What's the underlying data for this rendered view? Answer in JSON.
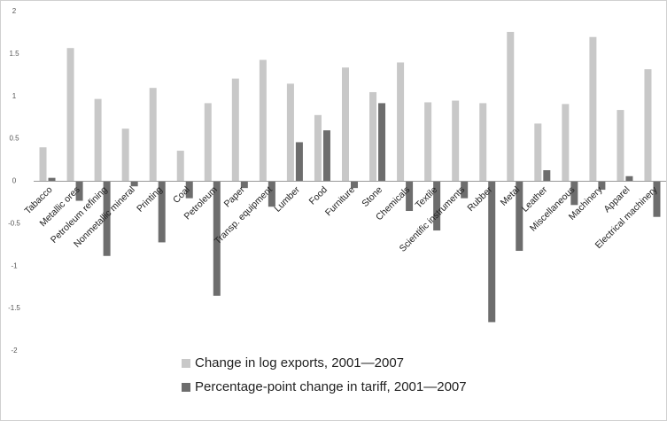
{
  "chart_data": {
    "type": "bar",
    "categories": [
      "Tabacco",
      "Metallic ores",
      "Petroleum refining",
      "Nonmetallic mineral",
      "Printing",
      "Coal",
      "Petroleum",
      "Paper",
      "Transp. equipment",
      "Lumber",
      "Food",
      "Furniture",
      "Stone",
      "Chemicals",
      "Textile",
      "Scientific instruments",
      "Rubber",
      "Metal",
      "Leather",
      "Miscellaneous",
      "Machinery",
      "Apparel",
      "Electrical machinery"
    ],
    "series": [
      {
        "name": "Change in log exports, 2001—2007",
        "color": "#c8c8c8",
        "values": [
          0.4,
          1.57,
          0.97,
          0.62,
          1.1,
          0.36,
          0.92,
          1.21,
          1.43,
          1.15,
          0.78,
          1.34,
          1.05,
          1.4,
          0.93,
          0.95,
          0.92,
          1.76,
          0.68,
          0.91,
          1.7,
          0.84,
          1.32
        ]
      },
      {
        "name": "Percentage-point change in tariff, 2001—2007",
        "color": "#6d6d6d",
        "values": [
          0.04,
          -0.23,
          -0.88,
          -0.06,
          -0.72,
          -0.2,
          -1.35,
          -0.08,
          -0.3,
          0.46,
          0.6,
          -0.08,
          0.92,
          -0.35,
          -0.58,
          -0.2,
          -1.66,
          -0.82,
          0.13,
          -0.28,
          -0.1,
          0.06,
          -0.42
        ]
      }
    ],
    "ylim": [
      -2,
      2
    ],
    "yticks": [
      2,
      1.5,
      1,
      0.5,
      0,
      -0.5,
      -1,
      -1.5,
      -2
    ],
    "grid": false,
    "legend": "bottom"
  }
}
